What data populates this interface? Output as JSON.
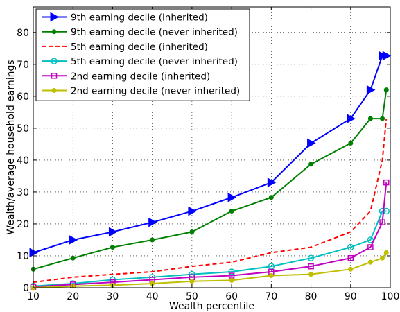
{
  "chart_data": {
    "type": "line",
    "xlabel": "Wealth percentile",
    "ylabel": "Wealth/average household earnings",
    "xlim": [
      10,
      100
    ],
    "ylim": [
      0,
      88
    ],
    "xticks": [
      10,
      20,
      30,
      40,
      50,
      60,
      70,
      80,
      90,
      100
    ],
    "yticks": [
      0,
      10,
      20,
      30,
      40,
      50,
      60,
      70,
      80
    ],
    "grid": true,
    "legend_position": "top-left",
    "x": [
      10,
      20,
      30,
      40,
      50,
      60,
      70,
      80,
      90,
      95,
      98,
      99
    ],
    "series": [
      {
        "name": "9th earning decile (inherited)",
        "color": "#0000ff",
        "line_style": "solid",
        "marker": "triangle-right",
        "values": [
          11,
          15,
          17.5,
          20.5,
          24,
          28.3,
          33,
          45.3,
          53,
          62,
          72.7,
          72.7
        ]
      },
      {
        "name": "9th earning decile (never inherited)",
        "color": "#008000",
        "line_style": "solid",
        "marker": "dot",
        "values": [
          5.8,
          9.3,
          12.7,
          15,
          17.5,
          24,
          28.3,
          38.7,
          45.3,
          53,
          53,
          62
        ]
      },
      {
        "name": "5th earning decile (inherited)",
        "color": "#ff0000",
        "line_style": "dashed",
        "marker": "none",
        "values": [
          1.7,
          3.3,
          4.2,
          5,
          6.7,
          8,
          11,
          12.7,
          17.5,
          24,
          40,
          53
        ]
      },
      {
        "name": "5th earning decile (never inherited)",
        "color": "#00bfbf",
        "line_style": "solid",
        "marker": "circle",
        "values": [
          0.5,
          1.3,
          2.5,
          3.3,
          4.2,
          5,
          6.7,
          9.3,
          12.7,
          15,
          24,
          24
        ]
      },
      {
        "name": "2nd earning decile (inherited)",
        "color": "#bf00bf",
        "line_style": "solid",
        "marker": "square",
        "values": [
          0.3,
          1,
          1.7,
          2.5,
          3.3,
          3.8,
          5,
          6.7,
          9.3,
          12.7,
          20.5,
          33
        ]
      },
      {
        "name": "2nd earning decile (never inherited)",
        "color": "#bfbf00",
        "line_style": "solid",
        "marker": "dot",
        "values": [
          0,
          0.5,
          0.8,
          1.3,
          2,
          2.3,
          3.8,
          4.2,
          5.8,
          8,
          9.3,
          11
        ]
      }
    ]
  }
}
